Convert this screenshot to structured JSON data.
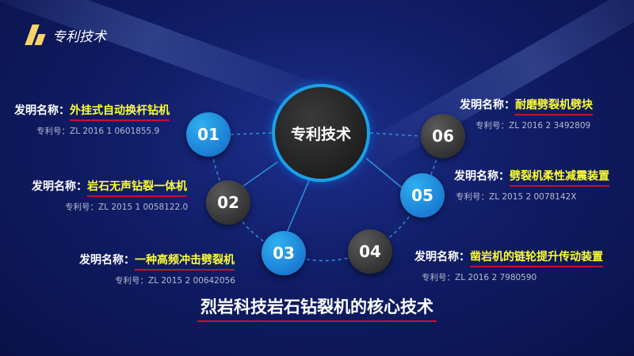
{
  "logo": {
    "text": "专利技术"
  },
  "center": {
    "label": "专利技术"
  },
  "label_prefix": "发明名称：",
  "items": [
    {
      "num": "01",
      "name": "外挂式自动换杆钻机",
      "patent": "专利号：ZL 2016 1 0601855.9"
    },
    {
      "num": "02",
      "name": "岩石无声钻裂一体机",
      "patent": "专利号：ZL 2015 1 0058122.0"
    },
    {
      "num": "03",
      "name": "一种高频冲击劈裂机",
      "patent": "专利号：ZL 2015 2 00642056"
    },
    {
      "num": "04",
      "name": "凿岩机的链轮提升传动装置",
      "patent": "专利号：ZL 2016 2 7980590"
    },
    {
      "num": "05",
      "name": "劈裂机柔性减震装置",
      "patent": "专利号：ZL 2015 2 0078142X"
    },
    {
      "num": "06",
      "name": "耐磨劈裂机劈块",
      "patent": "专利号：ZL 2016 2 3492809"
    }
  ],
  "footer": {
    "title": "烈岩科技岩石钻裂机的核心技术"
  },
  "colors": {
    "accent_yellow": "#ffff33",
    "underline_red": "#c8102e",
    "node_blue": "#1a8ee0",
    "node_dark": "#2a2a2a"
  }
}
